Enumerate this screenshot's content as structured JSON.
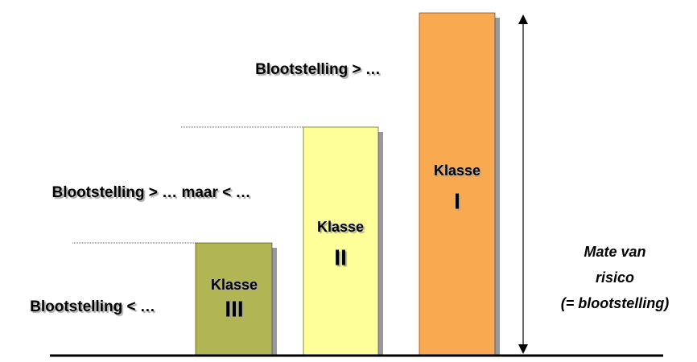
{
  "levels": [
    {
      "label": "Blootstelling < …",
      "class_word": "Klasse",
      "class_numeral": "III"
    },
    {
      "label": "Blootstelling > … maar < …",
      "class_word": "Klasse",
      "class_numeral": "II"
    },
    {
      "label": "Blootstelling > …",
      "class_word": "Klasse",
      "class_numeral": "I"
    }
  ],
  "axis_label": [
    "Mate van",
    "risico",
    "(= blootstelling)"
  ]
}
